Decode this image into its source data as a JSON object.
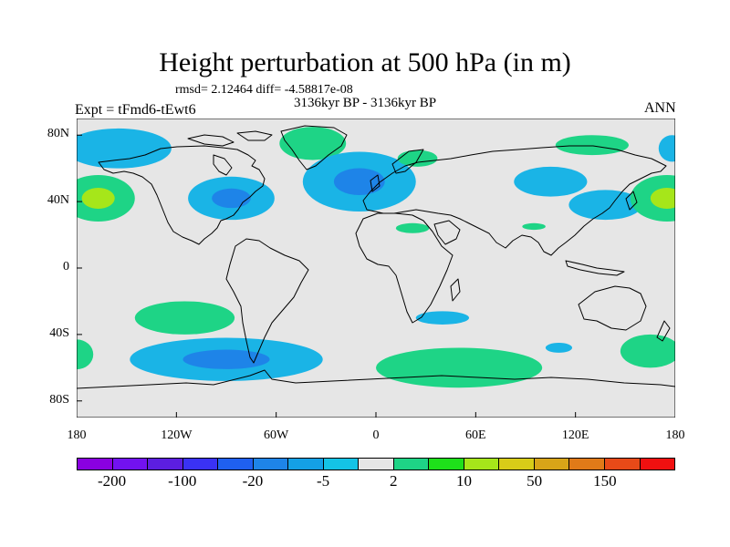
{
  "title": "Height perturbation at 500 hPa (in m)",
  "stats": "rmsd= 2.12464 diff= -4.58817e-08",
  "period": "3136kyr BP - 3136kyr BP",
  "experiment": "Expt = tFmd6-tEwt6",
  "season": "ANN",
  "map": {
    "projection": "cylindrical equidistant",
    "lon_range": [
      -180,
      180
    ],
    "lat_range": [
      -90,
      90
    ],
    "lat_labels": [
      {
        "lat": 80,
        "text": "80N"
      },
      {
        "lat": 40,
        "text": "40N"
      },
      {
        "lat": 0,
        "text": "0"
      },
      {
        "lat": -40,
        "text": "40S"
      },
      {
        "lat": -80,
        "text": "80S"
      }
    ],
    "lon_labels": [
      {
        "lon": -180,
        "text": "180"
      },
      {
        "lon": -120,
        "text": "120W"
      },
      {
        "lon": -60,
        "text": "60W"
      },
      {
        "lon": 0,
        "text": "0"
      },
      {
        "lon": 60,
        "text": "60E"
      },
      {
        "lon": 120,
        "text": "120E"
      },
      {
        "lon": 180,
        "text": "180"
      }
    ],
    "anomalies": [
      {
        "name": "anomaly-negative-north-pacific",
        "sign": "negative",
        "lon": -155,
        "lat": 72,
        "rlon": 32,
        "rlat": 12
      },
      {
        "name": "anomaly-positive-north-pacific-west",
        "sign": "positive",
        "lon": -167,
        "lat": 42,
        "rlon": 22,
        "rlat": 14,
        "core": true
      },
      {
        "name": "anomaly-negative-north-america",
        "sign": "negative",
        "lon": -87,
        "lat": 42,
        "rlon": 26,
        "rlat": 13,
        "core": true
      },
      {
        "name": "anomaly-positive-greenland",
        "sign": "positive",
        "lon": -38,
        "lat": 75,
        "rlon": 20,
        "rlat": 10
      },
      {
        "name": "anomaly-negative-europe",
        "sign": "negative",
        "lon": -10,
        "lat": 52,
        "rlon": 34,
        "rlat": 18,
        "core": true
      },
      {
        "name": "anomaly-positive-arctic-siberia",
        "sign": "positive",
        "lon": 25,
        "lat": 66,
        "rlon": 12,
        "rlat": 5
      },
      {
        "name": "anomaly-positive-east-siberia",
        "sign": "positive",
        "lon": 130,
        "lat": 74,
        "rlon": 22,
        "rlat": 6
      },
      {
        "name": "anomaly-negative-asia",
        "sign": "negative",
        "lon": 105,
        "lat": 52,
        "rlon": 22,
        "rlat": 9
      },
      {
        "name": "anomaly-negative-japan",
        "sign": "negative",
        "lon": 138,
        "lat": 38,
        "rlon": 22,
        "rlat": 9
      },
      {
        "name": "anomaly-positive-north-pacific-east",
        "sign": "positive",
        "lon": 175,
        "lat": 42,
        "rlon": 22,
        "rlat": 14,
        "core": true
      },
      {
        "name": "anomaly-negative-bering",
        "sign": "negative",
        "lon": 178,
        "lat": 72,
        "rlon": 8,
        "rlat": 8
      },
      {
        "name": "anomaly-positive-north-africa",
        "sign": "positive",
        "lon": 22,
        "lat": 24,
        "rlon": 10,
        "rlat": 3
      },
      {
        "name": "anomaly-positive-arabia",
        "sign": "positive",
        "lon": 95,
        "lat": 25,
        "rlon": 7,
        "rlat": 2
      },
      {
        "name": "anomaly-positive-south-pacific",
        "sign": "positive",
        "lon": -115,
        "lat": -30,
        "rlon": 30,
        "rlat": 10
      },
      {
        "name": "anomaly-negative-southern-ocean-pacific",
        "sign": "negative",
        "lon": -90,
        "lat": -55,
        "rlon": 58,
        "rlat": 13,
        "core": true
      },
      {
        "name": "anomaly-positive-southern-ocean-indian",
        "sign": "positive",
        "lon": 50,
        "lat": -60,
        "rlon": 50,
        "rlat": 12
      },
      {
        "name": "anomaly-negative-south-africa",
        "sign": "negative",
        "lon": 40,
        "lat": -30,
        "rlon": 16,
        "rlat": 4
      },
      {
        "name": "anomaly-negative-south-indian",
        "sign": "negative",
        "lon": 110,
        "lat": -48,
        "rlon": 8,
        "rlat": 3
      },
      {
        "name": "anomaly-positive-south-pacific-east",
        "sign": "positive",
        "lon": 165,
        "lat": -50,
        "rlon": 18,
        "rlat": 10
      },
      {
        "name": "anomaly-positive-south-atlantic-west",
        "sign": "positive",
        "lon": -180,
        "lat": -52,
        "rlon": 10,
        "rlat": 9
      }
    ]
  },
  "colorbar": {
    "colors": [
      "#8a00e0",
      "#7212f0",
      "#5c1ee0",
      "#3a32f4",
      "#1f60f0",
      "#1e84e8",
      "#14a0e6",
      "#14c3e6",
      "#e6e6e6",
      "#1ed486",
      "#1ee01a",
      "#a6e61a",
      "#d8cc18",
      "#d8a418",
      "#e07a18",
      "#e84a18",
      "#f01010"
    ],
    "labels": [
      {
        "after_bin": 1,
        "text": "-200"
      },
      {
        "after_bin": 3,
        "text": "-100"
      },
      {
        "after_bin": 5,
        "text": "-20"
      },
      {
        "after_bin": 7,
        "text": "-5"
      },
      {
        "after_bin": 9,
        "text": "2"
      },
      {
        "after_bin": 11,
        "text": "10"
      },
      {
        "after_bin": 13,
        "text": "50"
      },
      {
        "after_bin": 15,
        "text": "150"
      }
    ]
  },
  "colors": {
    "background": "#e6e6e6",
    "negative": "#1ab4e6",
    "negative_core": "#1e84e8",
    "positive": "#1ed486",
    "positive_core": "#a6e61a",
    "coast": "#000000"
  }
}
